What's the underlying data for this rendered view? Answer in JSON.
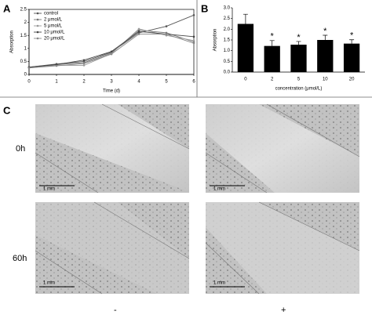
{
  "panel_labels": [
    "A",
    "B",
    "C"
  ],
  "chart_data": [
    {
      "type": "line",
      "xlabel": "Time (d)",
      "ylabel": "Absorption",
      "x": [
        0,
        1,
        2,
        3,
        4,
        5,
        6
      ],
      "xlim": [
        0,
        6
      ],
      "xticks": [
        0,
        1,
        2,
        3,
        4,
        5,
        6
      ],
      "ylim": [
        0,
        2.5
      ],
      "yticks": [
        0,
        0.5,
        1,
        1.5,
        2,
        2.5
      ],
      "legend": "upper-left",
      "series": [
        {
          "name": "control",
          "color": "#555555",
          "values": [
            0.28,
            0.4,
            0.5,
            0.85,
            1.6,
            1.85,
            2.28
          ]
        },
        {
          "name": "2 μmol/L",
          "color": "#777777",
          "values": [
            0.27,
            0.38,
            0.45,
            0.82,
            1.7,
            1.6,
            1.25
          ]
        },
        {
          "name": "5 μmol/L",
          "color": "#999999",
          "values": [
            0.25,
            0.35,
            0.35,
            0.8,
            1.75,
            1.5,
            1.3
          ]
        },
        {
          "name": "10 μmol/L",
          "color": "#444444",
          "values": [
            0.28,
            0.38,
            0.55,
            0.88,
            1.65,
            1.55,
            1.45
          ]
        },
        {
          "name": "20 μmol/L",
          "color": "#888888",
          "values": [
            0.25,
            0.33,
            0.42,
            0.78,
            1.55,
            1.55,
            1.2
          ]
        }
      ]
    },
    {
      "type": "bar",
      "xlabel": "concentration (μmol/L)",
      "ylabel": "Absorption",
      "categories": [
        "0",
        "2",
        "5",
        "10",
        "20"
      ],
      "values": [
        2.25,
        1.22,
        1.28,
        1.5,
        1.33
      ],
      "errors": [
        0.45,
        0.25,
        0.15,
        0.22,
        0.18
      ],
      "color": "#000000",
      "annotations": [
        "*",
        "*",
        "*",
        "*"
      ],
      "ylim": [
        0,
        3
      ],
      "yticks": [
        {
          "value": 0,
          "label": "0.0"
        },
        {
          "value": 0.5,
          "label": "0.5"
        },
        {
          "value": 1,
          "label": "1.0"
        },
        {
          "value": 1.5,
          "label": "1.5"
        },
        {
          "value": 2,
          "label": "2.0"
        },
        {
          "value": 2.5,
          "label": "2.5"
        },
        {
          "value": 3,
          "label": "3.0"
        }
      ]
    }
  ],
  "images": {
    "row_labels": [
      "0h",
      "60h"
    ],
    "column_labels": [
      "-",
      "+"
    ],
    "scale_bar": "1 mm"
  }
}
